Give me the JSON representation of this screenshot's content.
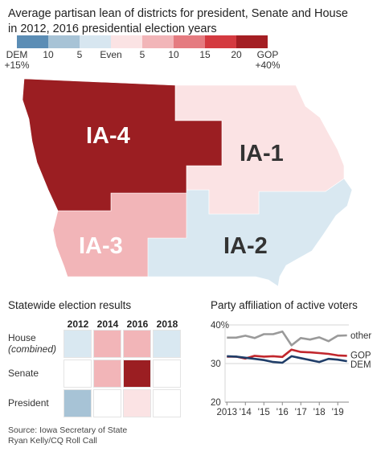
{
  "title": {
    "line1": "Average partisan lean of districts for president, Senate and House",
    "line2": "in 2012, 2016 presidential election years"
  },
  "legend": {
    "colors": [
      "#5b8db5",
      "#a7c3d6",
      "#d7e6f0",
      "#fbe3e4",
      "#f2b5b8",
      "#e57b80",
      "#d43a40",
      "#a41e23"
    ],
    "labels": [
      {
        "text": "DEM",
        "sub": "+15%",
        "pos": 0
      },
      {
        "text": "10",
        "sub": "",
        "pos": 1
      },
      {
        "text": "5",
        "sub": "",
        "pos": 2
      },
      {
        "text": "Even",
        "sub": "",
        "pos": 3
      },
      {
        "text": "5",
        "sub": "",
        "pos": 4
      },
      {
        "text": "10",
        "sub": "",
        "pos": 5
      },
      {
        "text": "15",
        "sub": "",
        "pos": 6
      },
      {
        "text": "20",
        "sub": "",
        "pos": 7
      },
      {
        "text": "GOP",
        "sub": "+40%",
        "pos": 8
      }
    ]
  },
  "map": {
    "districts": [
      {
        "id": "IA-4",
        "label": "IA-4",
        "color": "#9b1e22",
        "label_color": "#ffffff"
      },
      {
        "id": "IA-1",
        "label": "IA-1",
        "color": "#fbe3e4",
        "label_color": "#333333"
      },
      {
        "id": "IA-3",
        "label": "IA-3",
        "color": "#f2b5b8",
        "label_color": "#ffffff"
      },
      {
        "id": "IA-2",
        "label": "IA-2",
        "color": "#d9e8f1",
        "label_color": "#333333"
      }
    ]
  },
  "results": {
    "title": "Statewide election results",
    "years": [
      "2012",
      "2014",
      "2016",
      "2018"
    ],
    "rows": [
      {
        "label": "House",
        "sublabel": "(combined)",
        "cells": [
          "#d9e8f1",
          "#f2b5b8",
          "#f2b5b8",
          "#d9e8f1"
        ]
      },
      {
        "label": "Senate",
        "sublabel": "",
        "cells": [
          "#ffffff",
          "#f2b5b8",
          "#9b1e22",
          "#ffffff"
        ]
      },
      {
        "label": "President",
        "sublabel": "",
        "cells": [
          "#a7c3d6",
          "#ffffff",
          "#fbe3e4",
          "#ffffff"
        ]
      }
    ]
  },
  "affiliation": {
    "title": "Party affiliation of active voters",
    "y_ticks": [
      "40%",
      "30",
      "20"
    ],
    "x_ticks": [
      "2013",
      "'14",
      "'15",
      "'16",
      "'17",
      "'18",
      "'19"
    ]
  },
  "chart_data": {
    "type": "line",
    "title": "Party affiliation of active voters",
    "x": [
      2013,
      2013.5,
      2014,
      2014.5,
      2015,
      2015.5,
      2016,
      2016.5,
      2017,
      2017.5,
      2018,
      2018.5,
      2019,
      2019.5
    ],
    "xlim": [
      2012.9,
      2019.6
    ],
    "ylim": [
      20,
      40
    ],
    "y_unit": "%",
    "series": [
      {
        "name": "other",
        "color": "#9a9a9a",
        "values": [
          36.7,
          36.7,
          37.2,
          36.6,
          37.6,
          37.6,
          38.3,
          34.7,
          36.6,
          36.2,
          36.8,
          35.8,
          37.2,
          37.3
        ]
      },
      {
        "name": "GOP",
        "color": "#c1272d",
        "values": [
          31.8,
          31.8,
          31.3,
          32.0,
          31.8,
          31.9,
          31.7,
          33.6,
          33.0,
          32.9,
          32.7,
          32.5,
          32.1,
          32.0
        ]
      },
      {
        "name": "DEM",
        "color": "#1f3d68",
        "values": [
          31.9,
          31.8,
          31.5,
          31.2,
          30.9,
          30.4,
          30.2,
          31.9,
          31.4,
          30.9,
          30.4,
          31.2,
          31.0,
          30.6
        ]
      }
    ]
  },
  "source": {
    "line1": "Source: Iowa Secretary of State",
    "line2": "Ryan Kelly/CQ Roll Call"
  }
}
